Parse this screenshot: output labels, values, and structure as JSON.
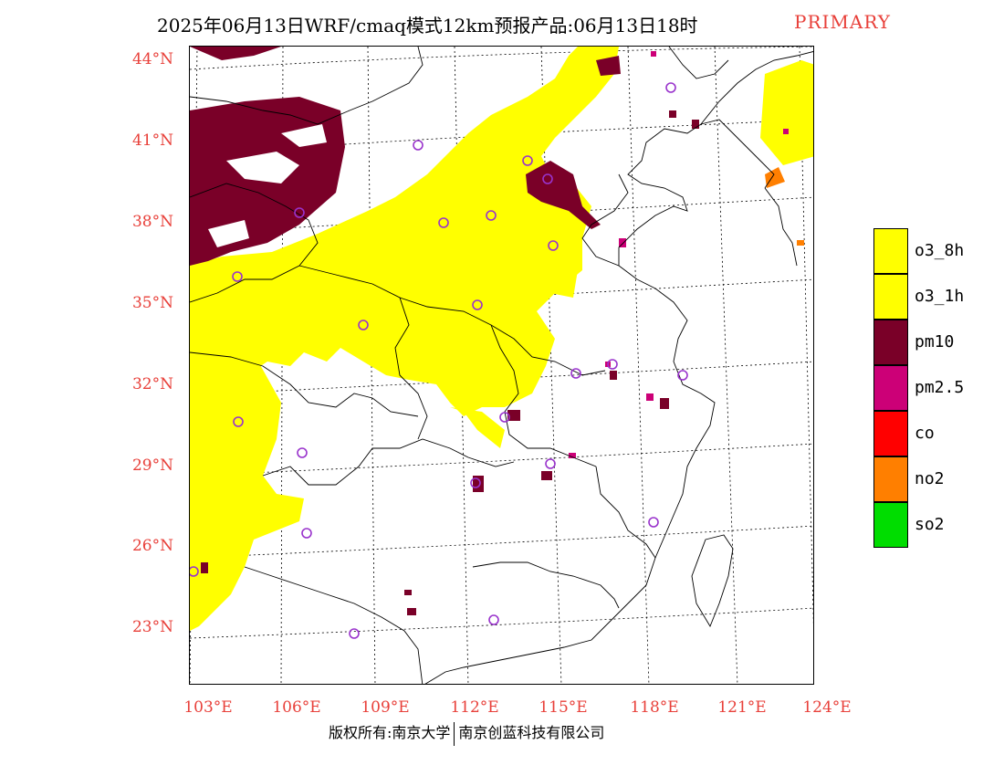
{
  "title": {
    "main": "2025年06月13日WRF/cmaq模式12km预报产品:06月13日18时",
    "tag": "PRIMARY"
  },
  "latitude_labels": [
    "44°N",
    "41°N",
    "38°N",
    "35°N",
    "32°N",
    "29°N",
    "26°N",
    "23°N"
  ],
  "longitude_labels": [
    "103°E",
    "106°E",
    "109°E",
    "112°E",
    "115°E",
    "118°E",
    "121°E",
    "124°E"
  ],
  "legend": [
    {
      "label": "o3_8h",
      "color": "#ffff00"
    },
    {
      "label": "o3_1h",
      "color": "#ffff00"
    },
    {
      "label": "pm10",
      "color": "#7a0028"
    },
    {
      "label": "pm2.5",
      "color": "#cc0077"
    },
    {
      "label": "co",
      "color": "#ff0000"
    },
    {
      "label": "no2",
      "color": "#ff7f00"
    },
    {
      "label": "so2",
      "color": "#00dd00"
    }
  ],
  "footer": {
    "left": "版权所有:南京大学",
    "right": "南京创蓝科技有限公司"
  },
  "colors": {
    "o3": "#ffff00",
    "pm10": "#7a0028",
    "pm25": "#cc0077",
    "no2": "#ff7f00",
    "axis_label": "#e8403a",
    "station": "#9933cc"
  }
}
